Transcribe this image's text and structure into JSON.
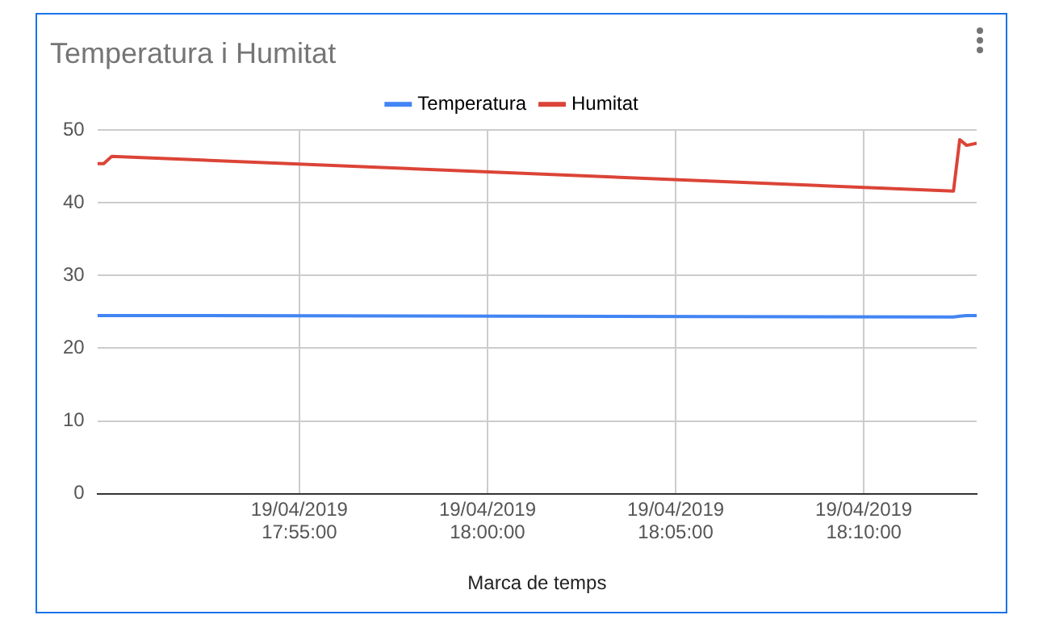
{
  "chart_data": {
    "type": "line",
    "title": "Temperatura i Humitat",
    "xlabel": "Marca de temps",
    "x": [
      "2019-04-19T17:49:38",
      "2019-04-19T17:49:48",
      "2019-04-19T17:50:01",
      "2019-04-19T18:12:23",
      "2019-04-19T18:12:33",
      "2019-04-19T18:12:44",
      "2019-04-19T18:13:00"
    ],
    "series": [
      {
        "name": "Temperatura",
        "color": "#4285f4",
        "values": [
          24.5,
          24.5,
          24.5,
          24.3,
          24.4,
          24.5,
          24.5
        ]
      },
      {
        "name": "Humitat",
        "color": "#db4437",
        "values": [
          45.4,
          45.4,
          46.4,
          41.6,
          48.7,
          47.9,
          48.2
        ]
      }
    ],
    "xlim": [
      "2019-04-19T17:49:38",
      "2019-04-19T18:13:00"
    ],
    "xticks": [
      {
        "value": "2019-04-19T17:55",
        "label": "19/04/2019\n17:55:00"
      },
      {
        "value": "2019-04-19T18:00",
        "label": "19/04/2019\n18:00:00"
      },
      {
        "value": "2019-04-19T18:05",
        "label": "19/04/2019\n18:05:00"
      },
      {
        "value": "2019-04-19T18:10",
        "label": "19/04/2019\n18:10:00"
      }
    ],
    "ylim": [
      0,
      50
    ],
    "yticks": [
      0,
      10,
      20,
      30,
      40,
      50
    ],
    "grid": true,
    "legend": "top",
    "marker": "none",
    "line_style": "solid"
  }
}
